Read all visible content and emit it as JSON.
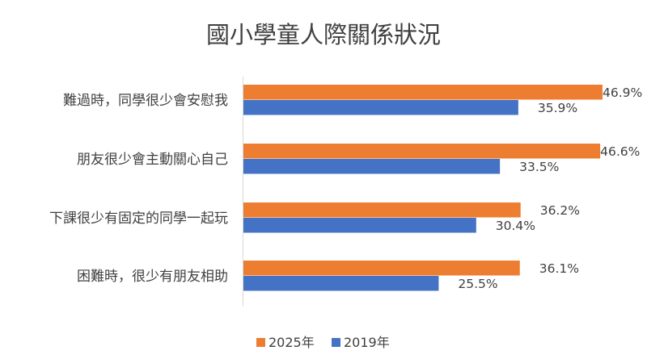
{
  "chart_data": {
    "type": "bar",
    "orientation": "horizontal",
    "title": "國小學童人際關係狀況",
    "categories": [
      "難過時，同學很少會安慰我",
      "朋友很少會主動關心自己",
      "下課很少有固定的同學一起玩",
      "困難時，很少有朋友相助"
    ],
    "series": [
      {
        "name": "2025年",
        "values": [
          46.9,
          46.6,
          36.2,
          36.1
        ],
        "labels": [
          "46.9%",
          "46.6%",
          "36.2%",
          "36.1%"
        ],
        "color": "#ED7D31"
      },
      {
        "name": "2019年",
        "values": [
          35.9,
          33.5,
          30.4,
          25.5
        ],
        "labels": [
          "35.9%",
          "33.5%",
          "30.4%",
          "25.5%"
        ],
        "color": "#4472C4"
      }
    ],
    "xlim": [
      0,
      50
    ],
    "unit": "%",
    "grid": false,
    "legend": "bottom"
  }
}
